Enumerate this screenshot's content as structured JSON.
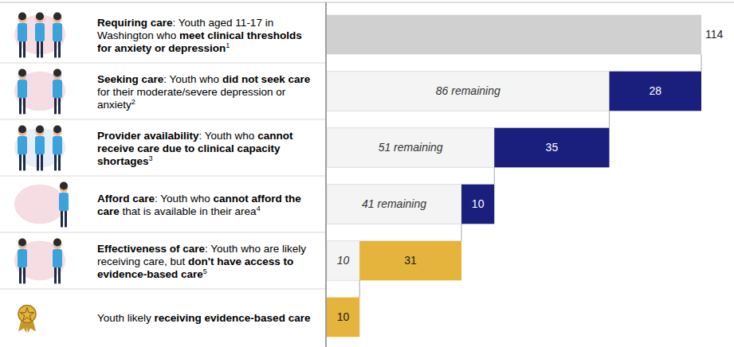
{
  "chart_data": {
    "type": "bar",
    "orientation": "horizontal",
    "stacked": true,
    "data_labels": true,
    "tick_labels": false,
    "xlim": [
      0,
      114
    ],
    "categories": [
      [
        {
          "text": "Requiring care",
          "bold": true
        },
        {
          "text": ": Youth aged 11-17 in Washington who ",
          "bold": false
        },
        {
          "text": "meet clinical thresholds for anxiety or depression",
          "bold": true
        }
      ],
      [
        {
          "text": "Seeking care",
          "bold": true
        },
        {
          "text": ": Youth who ",
          "bold": false
        },
        {
          "text": "did not seek care",
          "bold": true
        },
        {
          "text": " for their moderate/severe depression or anxiety",
          "bold": false
        }
      ],
      [
        {
          "text": "Provider availability",
          "bold": true
        },
        {
          "text": ": Youth who ",
          "bold": false
        },
        {
          "text": "cannot receive care due to clinical capacity shortages",
          "bold": true
        }
      ],
      [
        {
          "text": "Afford care",
          "bold": true
        },
        {
          "text": ": Youth who ",
          "bold": false
        },
        {
          "text": "cannot afford the care",
          "bold": true
        },
        {
          "text": " that is available in their area",
          "bold": false
        }
      ],
      [
        {
          "text": "Effectiveness of care",
          "bold": true
        },
        {
          "text": ": Youth who are likely receiving care, but ",
          "bold": false
        },
        {
          "text": "don't have access to evidence-based care",
          "bold": true
        }
      ],
      [
        {
          "text": "Youth likely ",
          "bold": false
        },
        {
          "text": "receiving evidence-based care",
          "bold": true
        }
      ]
    ],
    "category_notes": [
      "1",
      "2",
      "3",
      "4",
      "5",
      null
    ],
    "series": [
      {
        "values": [
          null,
          86,
          51,
          41,
          10,
          null
        ],
        "value_labels": [
          null,
          "86 remaining",
          "51 remaining",
          "41 remaining",
          "10",
          null
        ],
        "color": "#f4f4f4"
      },
      {
        "values": [
          114,
          28,
          35,
          10,
          31,
          10
        ],
        "colors": [
          "#d0d0d0",
          "#1a1f7e",
          "#1a1f7e",
          "#1a1f7e",
          "#e4b43c",
          "#e4b43c"
        ]
      }
    ]
  }
}
